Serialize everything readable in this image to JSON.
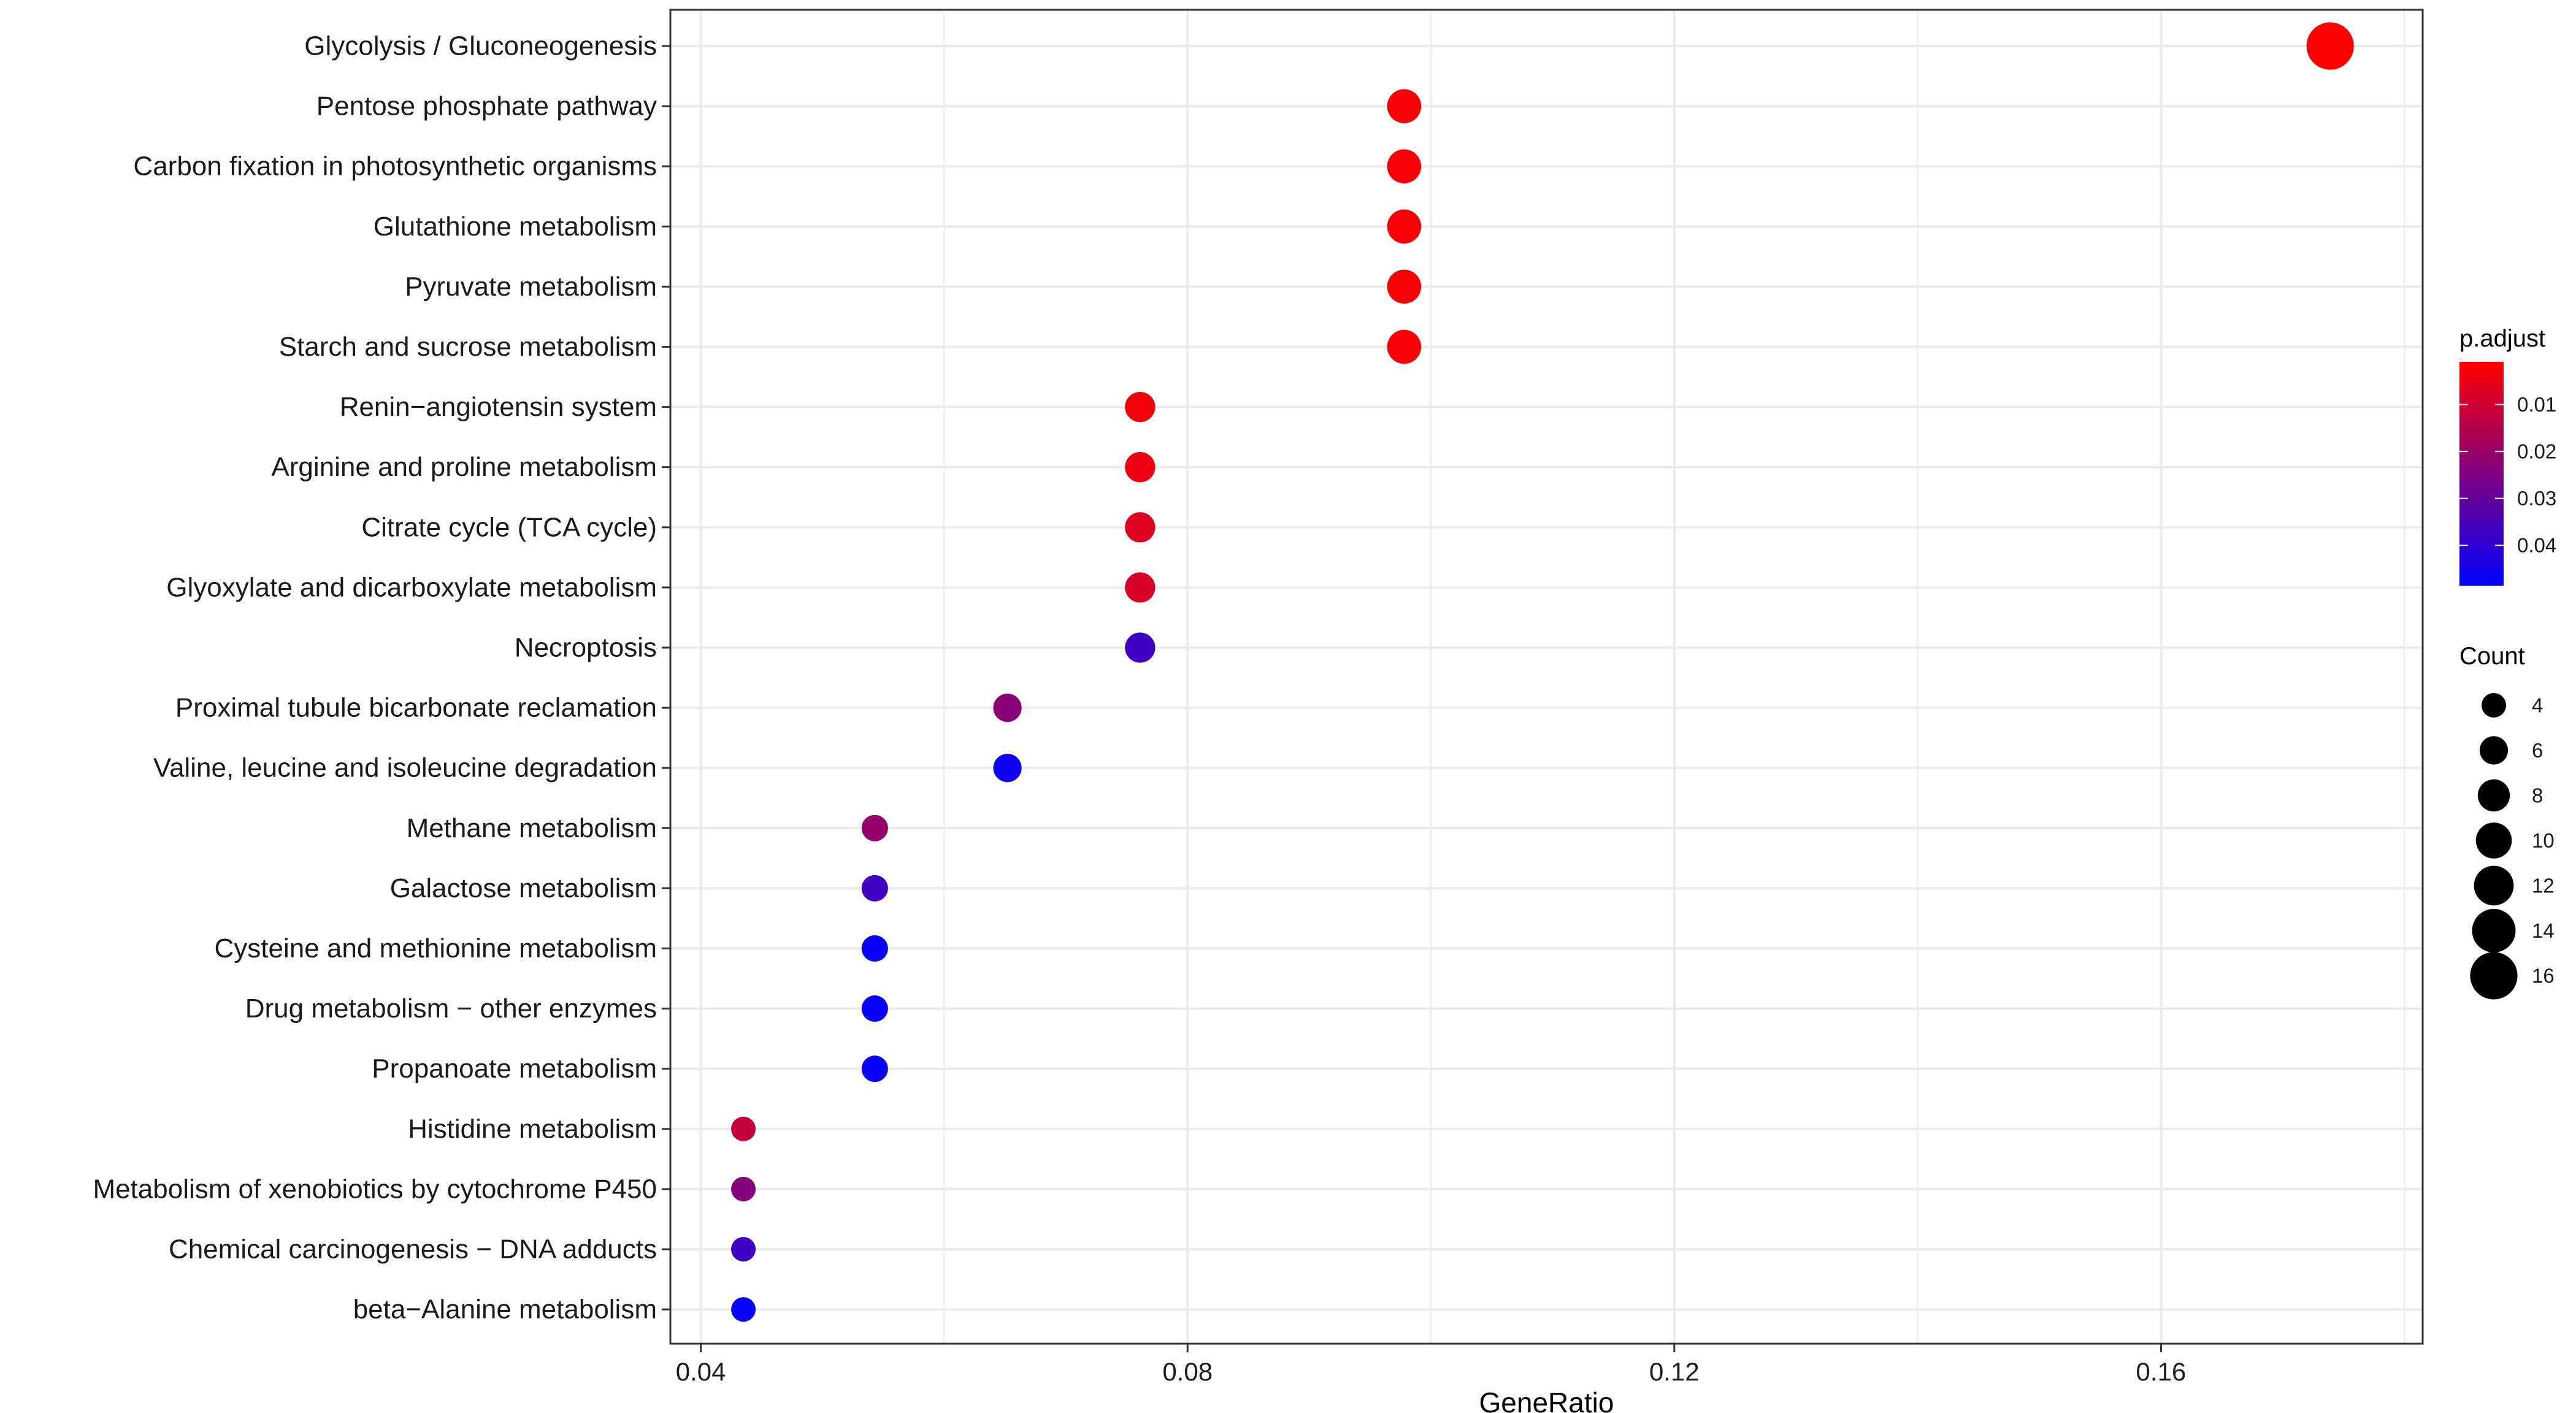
{
  "chart_data": {
    "type": "scatter",
    "xlabel": "GeneRatio",
    "ylabel": "",
    "xlim": [
      0.0375,
      0.1815
    ],
    "xticks": [
      0.04,
      0.08,
      0.12,
      0.16
    ],
    "xtick_labels": [
      "0.04",
      "0.08",
      "0.12",
      "0.16"
    ],
    "grid": true,
    "legend_position": "right",
    "categories": [
      "Glycolysis / Gluconeogenesis",
      "Pentose phosphate pathway",
      "Carbon fixation in photosynthetic organisms",
      "Glutathione metabolism",
      "Pyruvate metabolism",
      "Starch and sucrose metabolism",
      "Renin−angiotensin system",
      "Arginine and proline metabolism",
      "Citrate cycle (TCA cycle)",
      "Glyoxylate and dicarboxylate metabolism",
      "Necroptosis",
      "Proximal tubule bicarbonate reclamation",
      "Valine, leucine and isoleucine degradation",
      "Methane metabolism",
      "Galactose metabolism",
      "Cysteine and methionine metabolism",
      "Drug metabolism − other enzymes",
      "Propanoate metabolism",
      "Histidine metabolism",
      "Metabolism of xenobiotics by cytochrome P450",
      "Chemical carcinogenesis − DNA adducts",
      "beta−Alanine metabolism"
    ],
    "points": [
      {
        "term": "Glycolysis / Gluconeogenesis",
        "gene_ratio": 0.1739,
        "count": 16,
        "p_adjust": 0.001
      },
      {
        "term": "Pentose phosphate pathway",
        "gene_ratio": 0.0978,
        "count": 9,
        "p_adjust": 0.002
      },
      {
        "term": "Carbon fixation in photosynthetic organisms",
        "gene_ratio": 0.0978,
        "count": 9,
        "p_adjust": 0.002
      },
      {
        "term": "Glutathione metabolism",
        "gene_ratio": 0.0978,
        "count": 9,
        "p_adjust": 0.002
      },
      {
        "term": "Pyruvate metabolism",
        "gene_ratio": 0.0978,
        "count": 9,
        "p_adjust": 0.002
      },
      {
        "term": "Starch and sucrose metabolism",
        "gene_ratio": 0.0978,
        "count": 9,
        "p_adjust": 0.002
      },
      {
        "term": "Renin−angiotensin system",
        "gene_ratio": 0.0761,
        "count": 7,
        "p_adjust": 0.003
      },
      {
        "term": "Arginine and proline metabolism",
        "gene_ratio": 0.0761,
        "count": 7,
        "p_adjust": 0.004
      },
      {
        "term": "Citrate cycle (TCA cycle)",
        "gene_ratio": 0.0761,
        "count": 7,
        "p_adjust": 0.007
      },
      {
        "term": "Glyoxylate and dicarboxylate metabolism",
        "gene_ratio": 0.0761,
        "count": 7,
        "p_adjust": 0.008
      },
      {
        "term": "Necroptosis",
        "gene_ratio": 0.0761,
        "count": 7,
        "p_adjust": 0.037
      },
      {
        "term": "Proximal tubule bicarbonate reclamation",
        "gene_ratio": 0.0652,
        "count": 6,
        "p_adjust": 0.023
      },
      {
        "term": "Valine, leucine and isoleucine degradation",
        "gene_ratio": 0.0652,
        "count": 6,
        "p_adjust": 0.046
      },
      {
        "term": "Methane metabolism",
        "gene_ratio": 0.0543,
        "count": 5,
        "p_adjust": 0.021
      },
      {
        "term": "Galactose metabolism",
        "gene_ratio": 0.0543,
        "count": 5,
        "p_adjust": 0.037
      },
      {
        "term": "Cysteine and methionine metabolism",
        "gene_ratio": 0.0543,
        "count": 5,
        "p_adjust": 0.047
      },
      {
        "term": "Drug metabolism − other enzymes",
        "gene_ratio": 0.0543,
        "count": 5,
        "p_adjust": 0.047
      },
      {
        "term": "Propanoate metabolism",
        "gene_ratio": 0.0543,
        "count": 5,
        "p_adjust": 0.047
      },
      {
        "term": "Histidine metabolism",
        "gene_ratio": 0.0435,
        "count": 4,
        "p_adjust": 0.012
      },
      {
        "term": "Metabolism of xenobiotics by cytochrome P450",
        "gene_ratio": 0.0435,
        "count": 4,
        "p_adjust": 0.024
      },
      {
        "term": "Chemical carcinogenesis − DNA adducts",
        "gene_ratio": 0.0435,
        "count": 4,
        "p_adjust": 0.037
      },
      {
        "term": "beta−Alanine metabolism",
        "gene_ratio": 0.0435,
        "count": 4,
        "p_adjust": 0.047
      }
    ],
    "color_legend": {
      "title": "p.adjust",
      "range": [
        0.0009,
        0.0486
      ],
      "ticks": [
        0.01,
        0.02,
        0.03,
        0.04
      ],
      "tick_labels": [
        "0.01",
        "0.02",
        "0.03",
        "0.04"
      ],
      "low_color": "#ff0000",
      "high_color": "#0000ff"
    },
    "size_legend": {
      "title": "Count",
      "values": [
        4,
        6,
        8,
        10,
        12,
        14,
        16
      ],
      "labels": [
        "4",
        "6",
        "8",
        "10",
        "12",
        "14",
        "16"
      ]
    },
    "colors": {
      "point_low_padj": "#ff0000",
      "point_high_padj": "#0000ff",
      "grid": "#ebebeb",
      "panel_border": "#333333"
    }
  }
}
